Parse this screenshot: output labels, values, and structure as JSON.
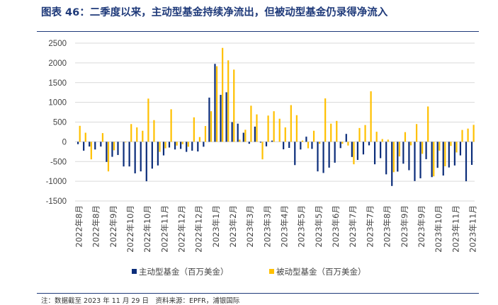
{
  "title": "图表 46：二季度以来，主动型基金持续净流出，但被动型基金仍录得净流入",
  "footer": "注：数据截至 2023 年 11 月 29 日　资料来源：EPFR，浦银国际",
  "chart_data": {
    "type": "bar",
    "title": "",
    "xlabel": "",
    "ylabel": "",
    "ylim": [
      -1500,
      2500
    ],
    "yticks": [
      2500,
      2000,
      1500,
      1000,
      500,
      0,
      -500,
      -1000,
      -1500
    ],
    "grid": true,
    "legend_position": "bottom",
    "x_tick_labels": [
      "2022年8月",
      "2022年8月",
      "2022年9月",
      "2022年10月",
      "2022年10月",
      "2022年11月",
      "2022年12月",
      "2022年12月",
      "2023年1月",
      "2023年2月",
      "2023年3月",
      "2023年3月",
      "2023年4月",
      "2023年5月",
      "2023年5月",
      "2023年6月",
      "2023年7月",
      "2023年7月",
      "2023年8月",
      "2023年9月",
      "2023年9月",
      "2023年10月",
      "2023年11月",
      "2023年11月"
    ],
    "series": [
      {
        "name": "主动型基金（百万美金）",
        "color": "#0b2d7a",
        "values": [
          -60,
          -225,
          -120,
          -195,
          -120,
          -510,
          -380,
          -335,
          -625,
          -625,
          -800,
          -750,
          -1000,
          -680,
          -600,
          -345,
          -145,
          -195,
          -180,
          -255,
          -225,
          -245,
          -125,
          1120,
          1975,
          1190,
          1255,
          500,
          460,
          230,
          -50,
          385,
          -20,
          -115,
          30,
          0,
          -190,
          -155,
          -590,
          -195,
          130,
          -180,
          -750,
          -790,
          -655,
          -530,
          -160,
          200,
          -385,
          -460,
          -320,
          -90,
          -570,
          -415,
          -825,
          -1120,
          -755,
          -555,
          -720,
          -995,
          -925,
          -440,
          -895,
          -660,
          -855,
          -650,
          -600,
          -345,
          -1000,
          -585
        ]
      },
      {
        "name": "被动型基金（百万美金）",
        "color": "#ffc000",
        "values": [
          405,
          230,
          -445,
          0,
          220,
          -750,
          -215,
          0,
          -15,
          450,
          365,
          280,
          1095,
          550,
          -255,
          -165,
          825,
          -95,
          -60,
          -125,
          620,
          120,
          400,
          775,
          1915,
          2380,
          2065,
          1830,
          55,
          305,
          915,
          695,
          -445,
          665,
          775,
          585,
          365,
          930,
          675,
          30,
          -165,
          280,
          -50,
          1100,
          460,
          530,
          -50,
          -95,
          -570,
          350,
          425,
          1280,
          255,
          70,
          55,
          -770,
          -370,
          245,
          -90,
          450,
          -305,
          895,
          -875,
          -225,
          -620,
          -105,
          -270,
          300,
          335,
          430
        ]
      }
    ]
  }
}
